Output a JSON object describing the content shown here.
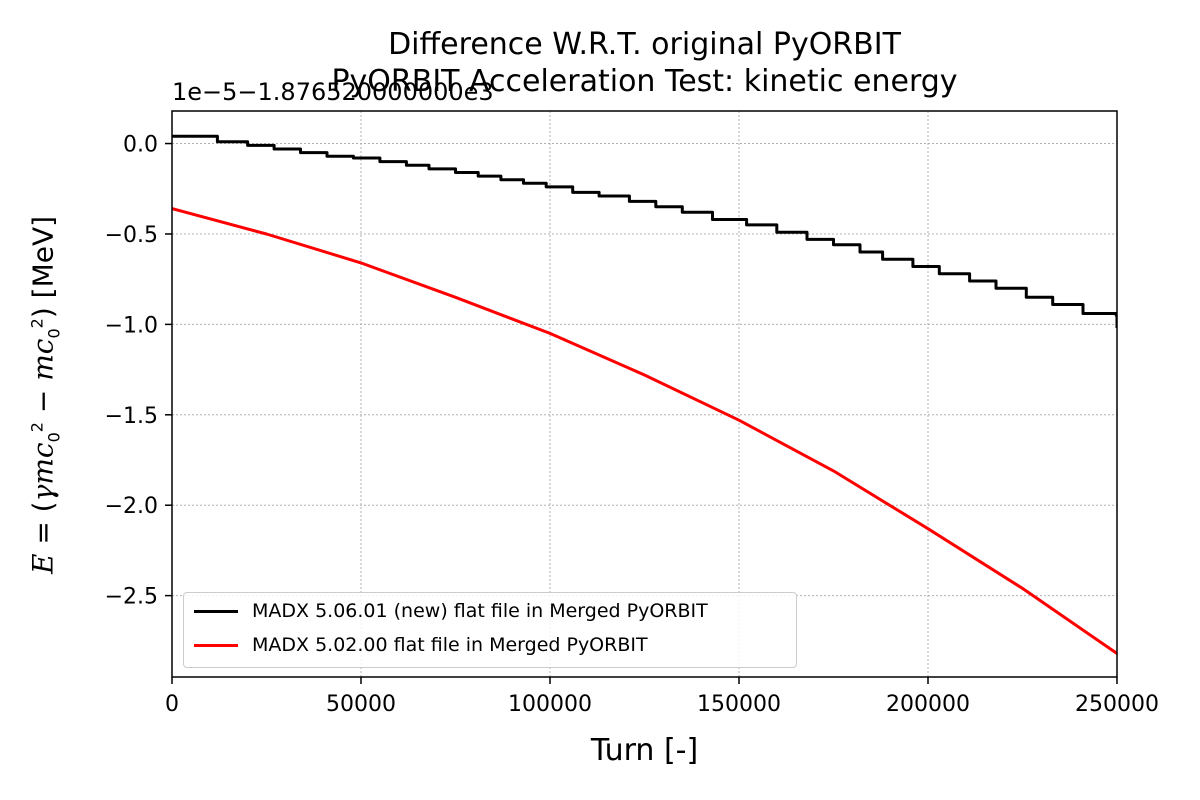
{
  "chart_data": {
    "type": "line",
    "title": "Difference W.R.T. original PyORBIT",
    "subtitle": "PyORBIT Acceleration Test: kinetic energy",
    "offset_text": "1e−5−1.876520000000e3",
    "xlabel": "Turn [-]",
    "ylabel": "E = (γmc0² − mc0²) [MeV]",
    "xlim": [
      0,
      250000
    ],
    "ylim": [
      -2.95,
      0.18
    ],
    "x_ticks": [
      "0",
      "50000",
      "100000",
      "150000",
      "200000",
      "250000"
    ],
    "y_ticks": [
      "0.0",
      "−0.5",
      "−1.0",
      "−1.5",
      "−2.0",
      "−2.5"
    ],
    "grid": true,
    "legend_position": "lower-left",
    "series": [
      {
        "name": "MADX 5.06.01 (new) flat file in Merged PyORBIT",
        "color": "#000000",
        "style": "step",
        "x": [
          0,
          12000,
          20000,
          27000,
          34000,
          41000,
          48000,
          55000,
          62000,
          68000,
          75000,
          81000,
          87000,
          93000,
          99000,
          106000,
          113000,
          121000,
          128000,
          135000,
          143000,
          152000,
          160000,
          168000,
          175000,
          182000,
          188000,
          196000,
          203000,
          211000,
          218000,
          226000,
          233000,
          241000,
          249800,
          250000
        ],
        "values": [
          0.04,
          0.01,
          -0.01,
          -0.03,
          -0.05,
          -0.07,
          -0.08,
          -0.1,
          -0.12,
          -0.14,
          -0.16,
          -0.18,
          -0.2,
          -0.22,
          -0.24,
          -0.27,
          -0.29,
          -0.32,
          -0.35,
          -0.38,
          -0.42,
          -0.45,
          -0.49,
          -0.53,
          -0.56,
          -0.6,
          -0.64,
          -0.68,
          -0.72,
          -0.76,
          -0.8,
          -0.85,
          -0.89,
          -0.94,
          -0.95,
          -1.02
        ]
      },
      {
        "name": "MADX 5.02.00 flat file in Merged PyORBIT",
        "color": "#ff0000",
        "style": "line",
        "x": [
          0,
          25000,
          50000,
          75000,
          100000,
          125000,
          150000,
          175000,
          200000,
          225000,
          250000
        ],
        "values": [
          -0.36,
          -0.5,
          -0.66,
          -0.85,
          -1.05,
          -1.28,
          -1.53,
          -1.81,
          -2.13,
          -2.46,
          -2.82
        ]
      }
    ]
  }
}
